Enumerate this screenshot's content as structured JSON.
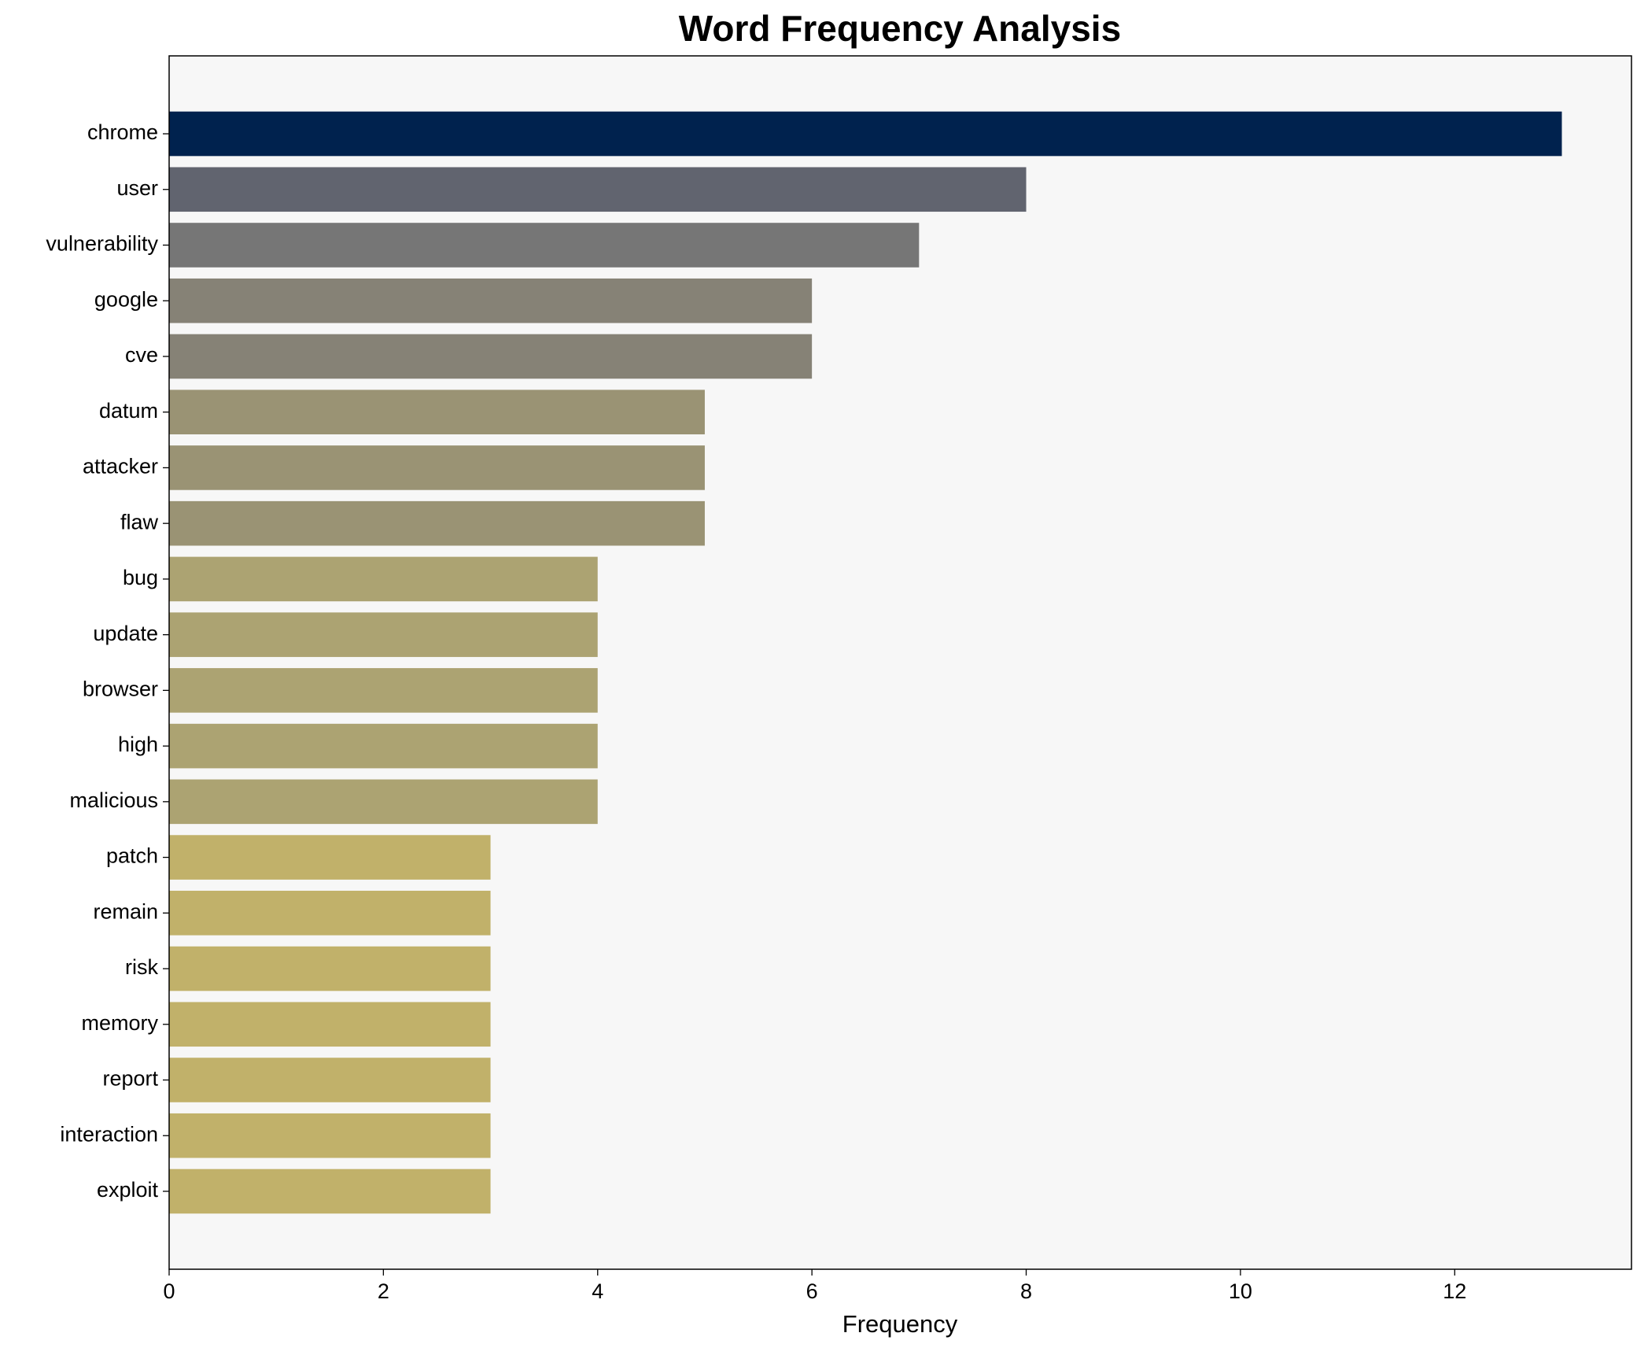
{
  "chart_data": {
    "type": "barh",
    "title": "Word Frequency Analysis",
    "x_label": "Frequency",
    "categories": [
      "chrome",
      "user",
      "vulnerability",
      "google",
      "cve",
      "datum",
      "attacker",
      "flaw",
      "bug",
      "update",
      "browser",
      "high",
      "malicious",
      "patch",
      "remain",
      "risk",
      "memory",
      "report",
      "interaction",
      "exploit"
    ],
    "values": [
      13,
      8,
      7,
      6,
      6,
      5,
      5,
      5,
      4,
      4,
      4,
      4,
      4,
      3,
      3,
      3,
      3,
      3,
      3,
      3
    ],
    "colors": [
      "#00224e",
      "#61646f",
      "#767676",
      "#868276",
      "#868276",
      "#9a9374",
      "#9a9374",
      "#9a9374",
      "#aca372",
      "#aca372",
      "#aca372",
      "#aca372",
      "#aca372",
      "#c1b16a",
      "#c1b16a",
      "#c1b16a",
      "#c1b16a",
      "#c1b16a",
      "#c1b16a",
      "#c1b16a"
    ],
    "xlim": [
      0,
      13.65
    ],
    "xticks": [
      0,
      2,
      4,
      6,
      8,
      10,
      12
    ],
    "grid": false
  }
}
